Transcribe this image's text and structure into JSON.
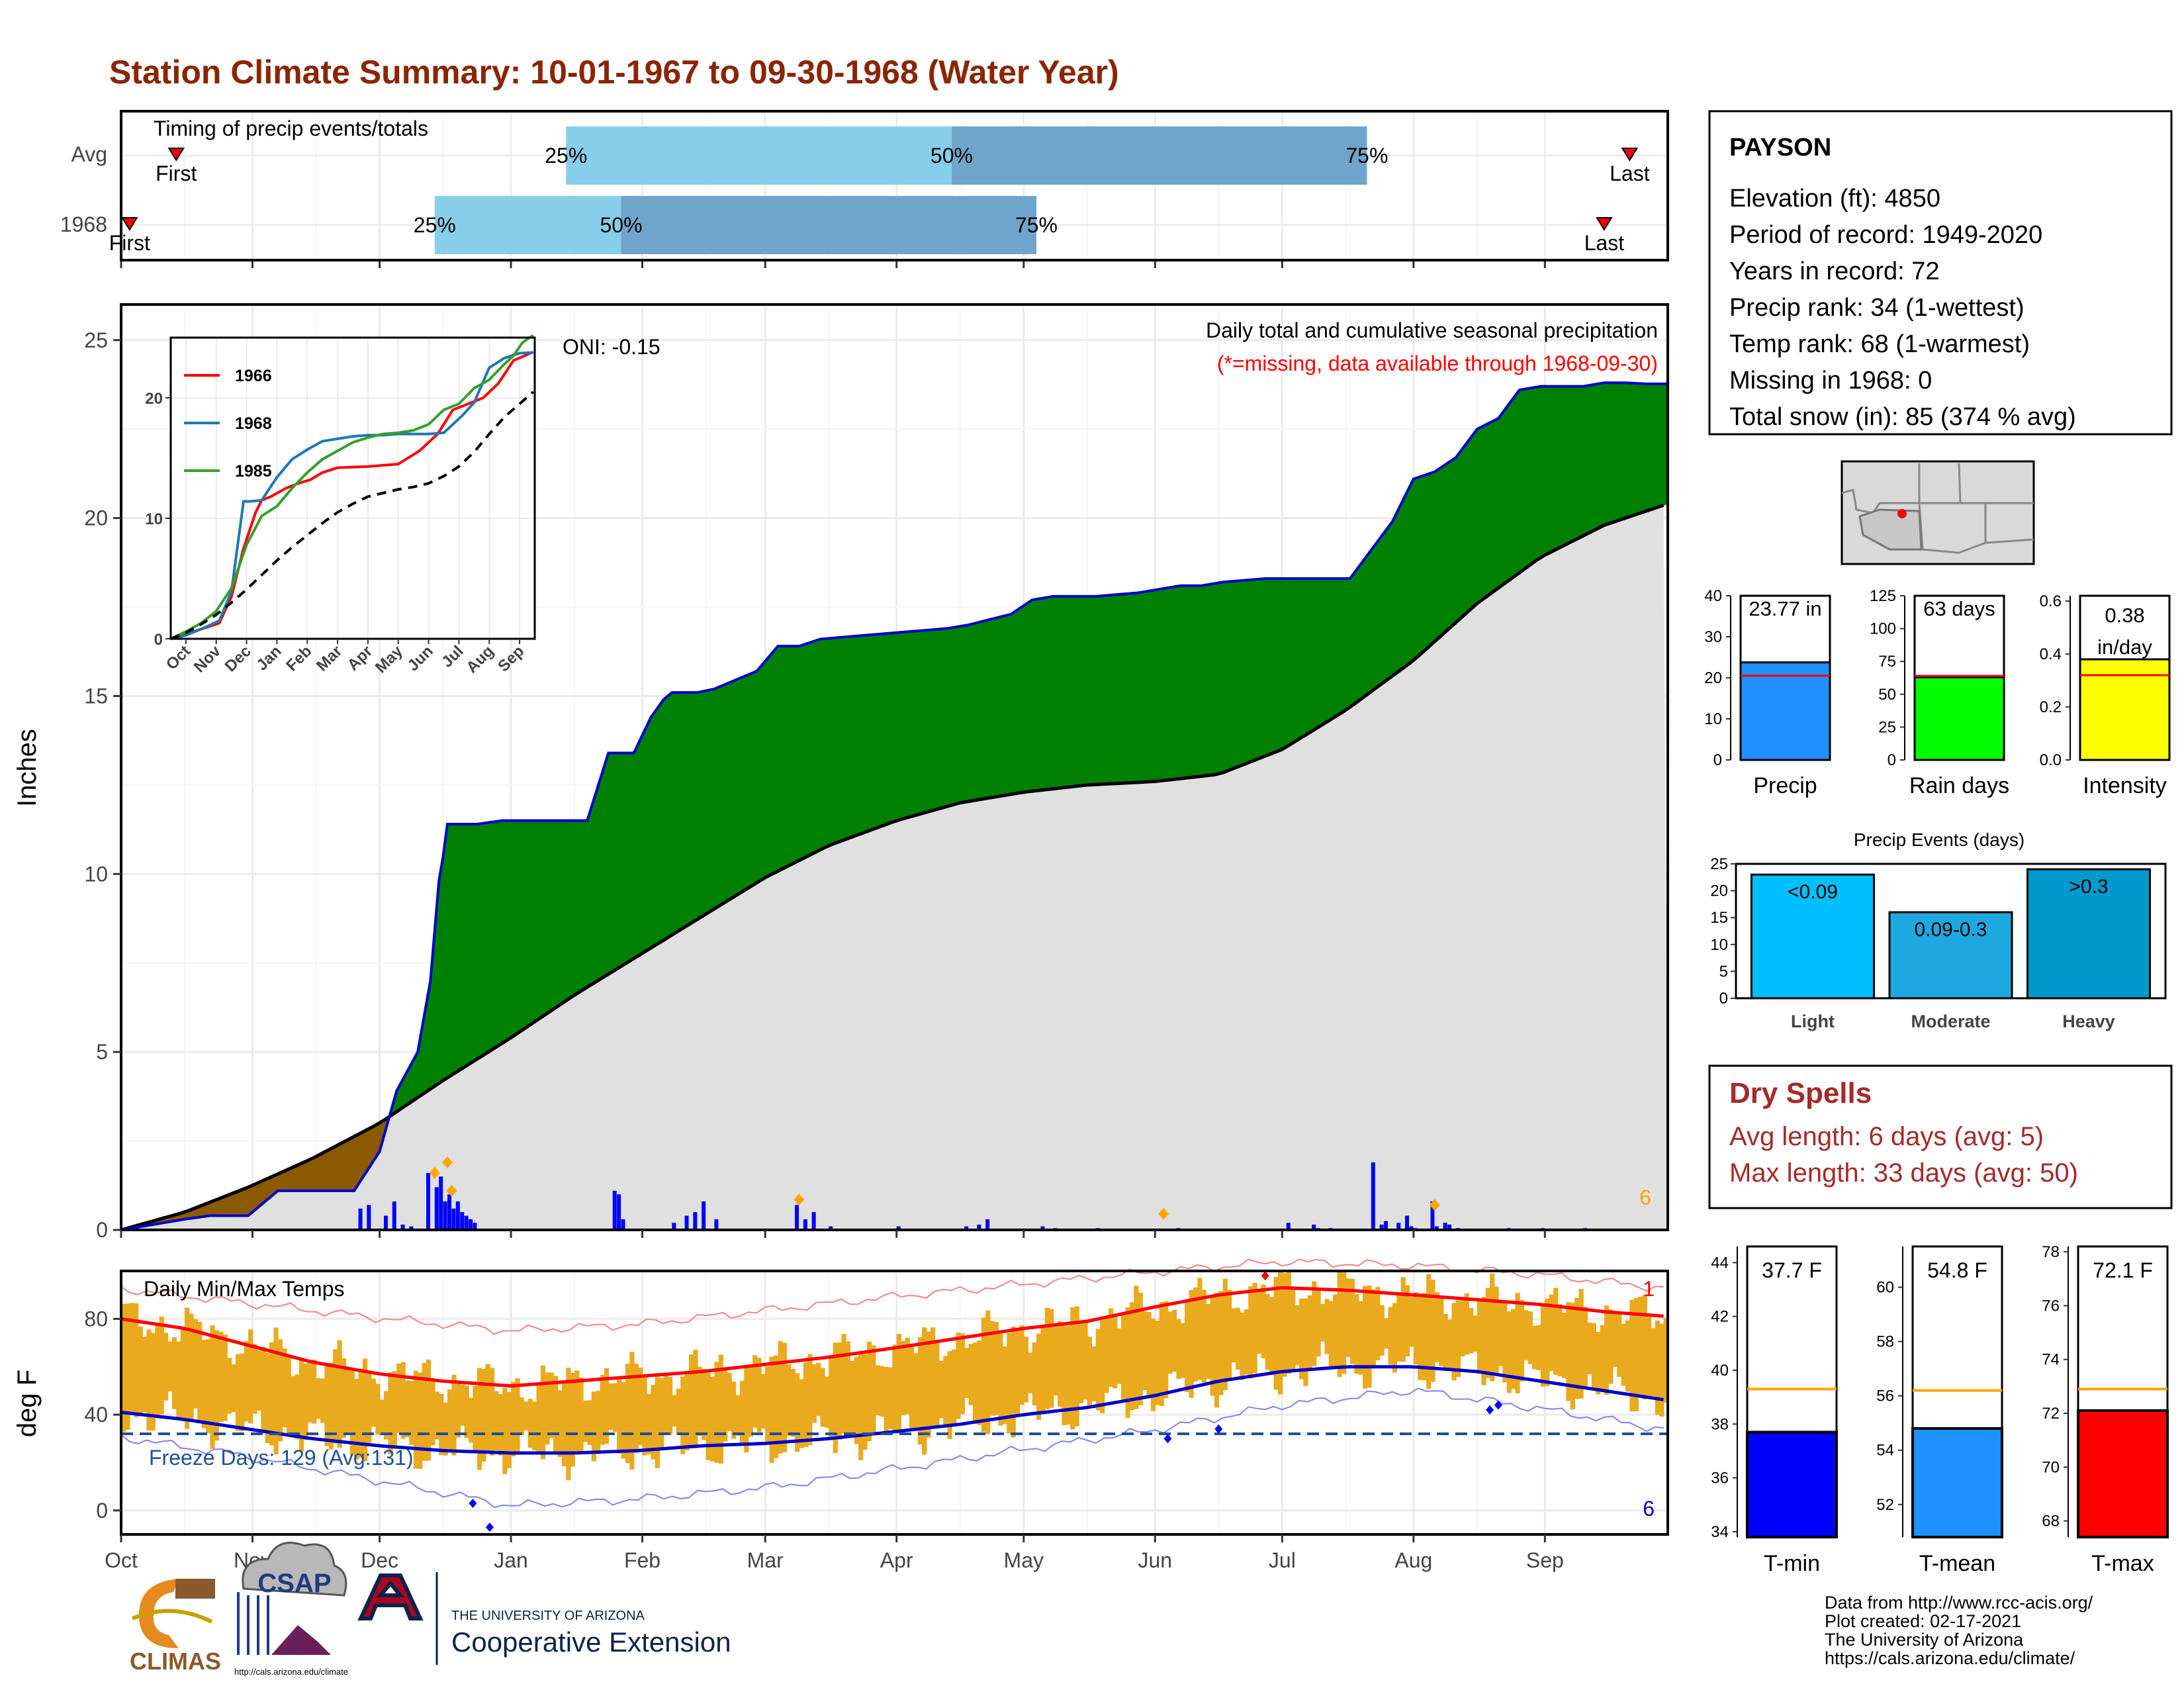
{
  "title": "Station Climate Summary: 10-01-1967 to 09-30-1968 (Water Year)",
  "colors": {
    "title": "#8B2500",
    "cumulative_line": "#0000CC",
    "above_avg_fill": "#008000",
    "below_avg_fill": "#8B5A00",
    "avg_fill": "#E0E0E0",
    "daily_bar": "#0000FF",
    "temp_bar": "#EAAA1E",
    "avg_max": "#FF0000",
    "avg_min": "#0000CC",
    "light_blue": "#87CEEB",
    "mid_blue": "#6FA5CB",
    "rain_green": "#00FF00",
    "intensity_yellow": "#FFFF00",
    "precip_blue": "#1E90FF",
    "events_light": "#00BFFF",
    "events_heavy": "#0099CC",
    "dry_red": "#A52A2A",
    "orange_line": "#FFA500"
  },
  "timing": {
    "label": "Timing of precip events/totals",
    "rows": [
      {
        "label": "Avg",
        "first_marker": "First",
        "last_marker": "Last",
        "first_date": "1967-10-14",
        "last_date": "1968-09-21",
        "p25_date": "1968-01-14",
        "p50_date": "1968-04-14",
        "p75_date": "1968-07-21",
        "p25_label": "25%",
        "p50_label": "50%",
        "p75_label": "75%"
      },
      {
        "label": "1968",
        "first_marker": "First",
        "last_marker": "Last",
        "first_date": "1967-10-03",
        "last_date": "1968-09-15",
        "p25_date": "1967-12-14",
        "p50_date": "1968-01-27",
        "p75_date": "1968-05-04",
        "p25_label": "25%",
        "p50_label": "50%",
        "p75_label": "75%"
      }
    ]
  },
  "precip_panel": {
    "ylabel": "Inches",
    "y_ticks": [
      "0",
      "5",
      "10",
      "15",
      "20",
      "25"
    ],
    "ylim": [
      0,
      26
    ],
    "header": "Daily total and cumulative seasonal precipitation",
    "missing_note": "(*=missing, data available through 1968-09-30)",
    "oni": "ONI: -0.15",
    "count_label": "6"
  },
  "inset": {
    "type": "line",
    "x_ticks": [
      "Oct",
      "Nov",
      "Dec",
      "Jan",
      "Feb",
      "Mar",
      "Apr",
      "May",
      "Jun",
      "Jul",
      "Aug",
      "Sep"
    ],
    "y_ticks": [
      "0",
      "10",
      "20"
    ],
    "ylim": [
      0,
      25
    ],
    "series": [
      {
        "name": "1966",
        "color": "#FF0000",
        "x": [
          0,
          1,
          1.6,
          2,
          2.4,
          2.8,
          3.0,
          3.3,
          3.8,
          4.2,
          4.6,
          5.0,
          5.5,
          6.5,
          7.5,
          8.2,
          8.8,
          9.3,
          9.8,
          10.3,
          10.8,
          11.3,
          11.95
        ],
        "values": [
          0,
          0.8,
          1.3,
          3.5,
          7.5,
          10.5,
          11.5,
          11.8,
          12.5,
          12.9,
          13.2,
          13.8,
          14.2,
          14.3,
          14.5,
          15.6,
          17.0,
          19.0,
          19.5,
          20.0,
          21.2,
          23.1,
          23.8
        ]
      },
      {
        "name": "1968",
        "color": "#1F78B4",
        "x": [
          0,
          0.5,
          1.0,
          1.6,
          2.0,
          2.4,
          2.6,
          3.0,
          3.5,
          4.0,
          4.5,
          5.0,
          5.5,
          6.0,
          6.5,
          7.0,
          7.5,
          8.0,
          8.5,
          9.0,
          9.6,
          10.0,
          10.5,
          11.0,
          11.5,
          11.95
        ],
        "values": [
          0,
          0.3,
          0.8,
          1.5,
          3.9,
          11.4,
          11.4,
          11.5,
          13.4,
          14.9,
          15.7,
          16.4,
          16.6,
          16.8,
          16.9,
          16.9,
          17.0,
          17.0,
          17.0,
          17.1,
          18.5,
          19.6,
          22.5,
          23.3,
          23.7,
          23.77
        ]
      },
      {
        "name": "1985",
        "color": "#33A02C",
        "x": [
          0,
          0.5,
          1.0,
          1.5,
          2.0,
          2.5,
          3.0,
          3.5,
          4.0,
          4.5,
          5.0,
          5.5,
          6.0,
          6.5,
          7.0,
          7.5,
          8.0,
          8.5,
          9.0,
          9.5,
          10.0,
          10.5,
          11.0,
          11.3,
          11.6,
          11.95
        ],
        "values": [
          0,
          0.6,
          1.3,
          2.3,
          4.2,
          7.8,
          10.2,
          11.0,
          12.5,
          13.8,
          14.9,
          15.6,
          16.3,
          16.7,
          17.0,
          17.1,
          17.3,
          17.8,
          19.0,
          19.5,
          20.8,
          21.5,
          22.8,
          23.5,
          24.6,
          25.2
        ]
      },
      {
        "name": "",
        "color": "#000000",
        "dashed": true,
        "x": [
          0,
          0.5,
          1,
          1.5,
          2,
          2.5,
          3,
          3.5,
          4,
          4.5,
          5,
          5.5,
          6,
          6.5,
          7,
          7.5,
          8,
          8.5,
          9,
          9.5,
          10,
          10.5,
          11,
          11.5,
          11.95
        ],
        "values": [
          0,
          0.5,
          1.2,
          2.0,
          3.0,
          4.1,
          5.3,
          6.5,
          7.6,
          8.6,
          9.6,
          10.5,
          11.2,
          11.8,
          12.1,
          12.4,
          12.6,
          12.9,
          13.5,
          14.3,
          15.5,
          17.0,
          18.4,
          19.5,
          20.5
        ]
      }
    ]
  },
  "chart_data": {
    "type": "area",
    "title": "Daily total and cumulative seasonal precipitation",
    "ylabel": "Inches",
    "ylim": [
      0,
      26
    ],
    "x_unit": "days since 1967-10-01",
    "cumulative_1968": {
      "x": [
        0,
        5,
        10,
        15,
        21,
        30,
        37,
        45,
        55,
        61,
        65,
        70,
        73,
        75,
        76,
        77,
        78,
        80,
        84,
        90,
        100,
        110,
        115,
        121,
        125,
        128,
        130,
        136,
        140,
        150,
        155,
        160,
        165,
        175,
        185,
        195,
        200,
        210,
        215,
        220,
        230,
        240,
        250,
        255,
        260,
        270,
        280,
        290,
        300,
        305,
        310,
        315,
        320,
        325,
        330,
        335,
        340,
        345,
        350,
        355,
        360,
        365
      ],
      "values": [
        0.0,
        0.1,
        0.2,
        0.3,
        0.4,
        0.4,
        1.1,
        1.1,
        1.1,
        2.2,
        3.9,
        5.0,
        7.0,
        9.8,
        10.5,
        11.4,
        11.4,
        11.4,
        11.4,
        11.5,
        11.5,
        11.5,
        13.4,
        13.4,
        14.4,
        14.9,
        15.1,
        15.1,
        15.2,
        15.7,
        16.4,
        16.4,
        16.6,
        16.7,
        16.8,
        16.9,
        17.0,
        17.3,
        17.7,
        17.8,
        17.8,
        17.9,
        18.1,
        18.1,
        18.2,
        18.3,
        18.3,
        18.3,
        19.9,
        21.1,
        21.3,
        21.7,
        22.5,
        22.8,
        23.6,
        23.7,
        23.7,
        23.7,
        23.8,
        23.8,
        23.77,
        23.77
      ]
    },
    "average_cumulative": {
      "x": [
        0,
        15,
        30,
        45,
        61,
        76,
        92,
        107,
        122,
        137,
        152,
        167,
        183,
        198,
        213,
        228,
        244,
        259,
        274,
        289,
        305,
        320,
        335,
        350,
        365
      ],
      "values": [
        0.0,
        0.5,
        1.2,
        2.0,
        3.0,
        4.2,
        5.4,
        6.6,
        7.7,
        8.8,
        9.9,
        10.8,
        11.5,
        12.0,
        12.3,
        12.5,
        12.6,
        12.8,
        13.5,
        14.6,
        16.0,
        17.6,
        18.9,
        19.8,
        20.4
      ]
    },
    "daily_precip": {
      "x": [
        56,
        58,
        62,
        64,
        66,
        68,
        72,
        74,
        75,
        76,
        77,
        78,
        79,
        80,
        81,
        82,
        83,
        116,
        117,
        118,
        130,
        133,
        135,
        137,
        140,
        159,
        161,
        163,
        167,
        183,
        199,
        202,
        204,
        217,
        220,
        230,
        249,
        275,
        281,
        282,
        285,
        295,
        297,
        298,
        301,
        303,
        304,
        305,
        309,
        310,
        312,
        313,
        315,
        327,
        335,
        345
      ],
      "values": [
        0.6,
        0.7,
        0.4,
        0.8,
        0.15,
        0.1,
        1.6,
        1.2,
        1.5,
        0.8,
        1.0,
        0.6,
        0.8,
        0.5,
        0.4,
        0.3,
        0.2,
        1.1,
        1.0,
        0.3,
        0.2,
        0.4,
        0.5,
        0.8,
        0.3,
        0.7,
        0.3,
        0.5,
        0.1,
        0.1,
        0.1,
        0.15,
        0.3,
        0.1,
        0.05,
        0.05,
        0.05,
        0.2,
        0.15,
        0.05,
        0.05,
        1.9,
        0.15,
        0.25,
        0.2,
        0.4,
        0.1,
        0.05,
        0.8,
        0.1,
        0.2,
        0.15,
        0.05,
        0.05,
        0.05,
        0.05
      ]
    }
  },
  "temp_panel": {
    "title": "Daily Min/Max Temps",
    "ylabel": "deg F",
    "y_ticks": [
      "0",
      "40",
      "80"
    ],
    "ylim": [
      -10,
      100
    ],
    "freeze": "Freeze Days: 129 (Avg:131)",
    "freeze_line": 32,
    "top_count": "1",
    "bottom_count": "6",
    "avg_max": {
      "x": [
        0,
        15,
        30,
        45,
        61,
        76,
        92,
        107,
        122,
        137,
        152,
        167,
        183,
        198,
        213,
        228,
        244,
        259,
        274,
        289,
        305,
        320,
        335,
        350,
        365
      ],
      "values": [
        80,
        76,
        69,
        62,
        57,
        54,
        52,
        54,
        56,
        58,
        61,
        64,
        68,
        72,
        76,
        79,
        85,
        90,
        93,
        92,
        90,
        88,
        86,
        83,
        81
      ]
    },
    "avg_min": {
      "x": [
        0,
        15,
        30,
        45,
        61,
        76,
        92,
        107,
        122,
        137,
        152,
        167,
        183,
        198,
        213,
        228,
        244,
        259,
        274,
        289,
        305,
        320,
        335,
        350,
        365
      ],
      "values": [
        41,
        38,
        34,
        30,
        27,
        25,
        24,
        24,
        25,
        27,
        28,
        30,
        33,
        36,
        40,
        43,
        48,
        54,
        58,
        60,
        60,
        58,
        54,
        50,
        46
      ]
    },
    "record_max": {
      "x": [
        0,
        30,
        61,
        92,
        122,
        152,
        183,
        213,
        244,
        274,
        305,
        335,
        365
      ],
      "values": [
        92,
        86,
        80,
        75,
        78,
        84,
        90,
        95,
        100,
        104,
        102,
        98,
        92
      ]
    },
    "record_min": {
      "x": [
        0,
        30,
        61,
        92,
        122,
        152,
        183,
        213,
        244,
        274,
        305,
        335,
        365
      ],
      "values": [
        30,
        22,
        12,
        2,
        5,
        10,
        18,
        26,
        34,
        44,
        50,
        42,
        33
      ]
    }
  },
  "x_months": [
    "Oct",
    "Nov",
    "Dec",
    "Jan",
    "Feb",
    "Mar",
    "Apr",
    "May",
    "Jun",
    "Jul",
    "Aug",
    "Sep"
  ],
  "station": {
    "name": "PAYSON",
    "lines": [
      "Elevation (ft): 4850",
      "Period of record: 1949-2020",
      "Years in record: 72",
      "Precip rank: 34 (1-wettest)",
      "Temp rank: 68 (1-warmest)",
      "Missing in 1968: 0",
      "Total snow (in): 85 (374 % avg)"
    ]
  },
  "mini_bars": [
    {
      "label": "Precip",
      "value_label": "23.77 in",
      "value": 23.77,
      "avg": 20.5,
      "ticks": [
        "0",
        "10",
        "20",
        "30",
        "40"
      ],
      "tick_values": [
        0,
        10,
        20,
        30,
        40
      ],
      "max": 40,
      "color": "#1E90FF"
    },
    {
      "label": "Rain days",
      "value_label": "63 days",
      "value": 63,
      "avg": 64,
      "ticks": [
        "0",
        "25",
        "50",
        "75",
        "100",
        "125"
      ],
      "tick_values": [
        0,
        25,
        50,
        75,
        100,
        125
      ],
      "max": 125,
      "color": "#00FF00"
    },
    {
      "label": "Intensity",
      "value_label": "0.38 in/day",
      "value": 0.38,
      "avg": 0.32,
      "ticks": [
        "0.0",
        "0.2",
        "0.4",
        "0.6"
      ],
      "tick_values": [
        0,
        0.2,
        0.4,
        0.6
      ],
      "max": 0.62,
      "color": "#FFFF00"
    }
  ],
  "events": {
    "title": "Precip Events (days)",
    "ticks": [
      "0",
      "5",
      "10",
      "15",
      "20",
      "25"
    ],
    "tick_values": [
      0,
      5,
      10,
      15,
      20,
      25
    ],
    "max": 25,
    "bars": [
      {
        "label": "Light",
        "value_label": "<0.09",
        "value": 23,
        "color": "#00BFFF"
      },
      {
        "label": "Moderate",
        "value_label": "0.09-0.3",
        "value": 16,
        "color": "#1EA8E0"
      },
      {
        "label": "Heavy",
        "value_label": ">0.3",
        "value": 24,
        "color": "#0099CC"
      }
    ]
  },
  "dry_spells": {
    "title": "Dry Spells",
    "avg": "Avg length: 6 days (avg: 5)",
    "max": "Max length: 33 days (avg: 50)"
  },
  "temp_bars": [
    {
      "label": "T-min",
      "value_label": "37.7 F",
      "value": 37.7,
      "avg": 39.3,
      "ticks": [
        "34",
        "36",
        "38",
        "40",
        "42",
        "44"
      ],
      "tick_values": [
        34,
        36,
        38,
        40,
        42,
        44
      ],
      "min": 33.8,
      "max": 44.6,
      "color": "#0000FF"
    },
    {
      "label": "T-mean",
      "value_label": "54.8 F",
      "value": 54.8,
      "avg": 56.2,
      "ticks": [
        "52",
        "54",
        "56",
        "58",
        "60"
      ],
      "tick_values": [
        52,
        54,
        56,
        58,
        60
      ],
      "min": 50.8,
      "max": 61.5,
      "color": "#1E90FF"
    },
    {
      "label": "T-max",
      "value_label": "72.1 F",
      "value": 72.1,
      "avg": 72.9,
      "ticks": [
        "68",
        "70",
        "72",
        "74",
        "76",
        "78"
      ],
      "tick_values": [
        68,
        70,
        72,
        74,
        76,
        78
      ],
      "min": 67.4,
      "max": 78.2,
      "color": "#FF0000"
    }
  ],
  "footer": {
    "lines": [
      "Data from http://www.rcc-acis.org/",
      "Plot created: 02-17-2021",
      "The University of Arizona",
      "https://cals.arizona.edu/climate/"
    ],
    "climas": "CLIMAS",
    "csap": "CSAP",
    "csap_url": "http://cals.arizona.edu/climate",
    "ua_small": "THE UNIVERSITY OF ARIZONA",
    "ua_big": "Cooperative Extension"
  }
}
